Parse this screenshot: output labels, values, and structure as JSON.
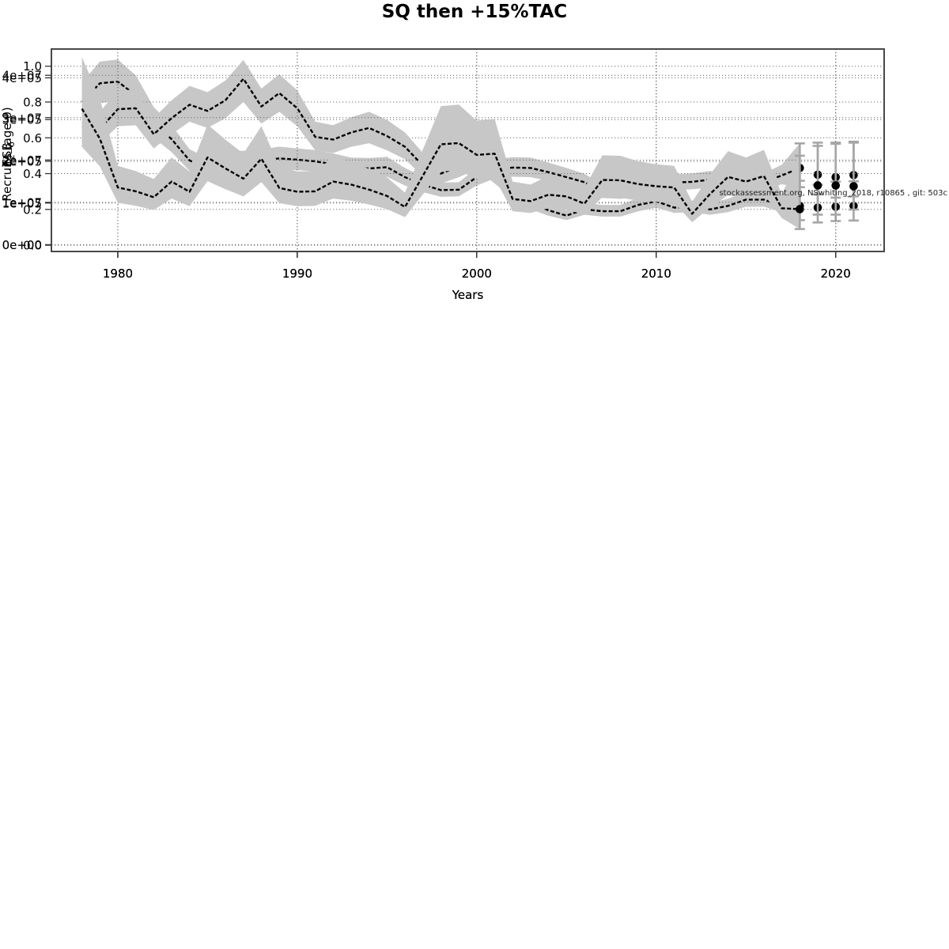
{
  "title": "SQ then +15%TAC",
  "watermark": "stockassessment.org, NSwhiting_2018, r10865 , git: 503c",
  "colors": {
    "band": "#c7c7c7",
    "line": "#000000",
    "errorbar": "#a6a6a6",
    "grid": "#6e6e6e",
    "box": "#3d3d3d",
    "dot": "#000000"
  },
  "chart_data": [
    {
      "type": "area",
      "name": "ssb",
      "title": "",
      "ylabel": "SSB",
      "ylabel_segments": [
        {
          "text": "SSB"
        }
      ],
      "xlabel": "Years",
      "xlim": [
        1976.3,
        2022.7
      ],
      "ylim": [
        -16000,
        469000
      ],
      "grid": true,
      "xticks": [
        {
          "v": 1980,
          "label": "1980"
        },
        {
          "v": 1990,
          "label": "1990"
        },
        {
          "v": 2000,
          "label": "2000"
        },
        {
          "v": 2010,
          "label": "2010"
        },
        {
          "v": 2020,
          "label": "2020"
        }
      ],
      "yticks": [
        {
          "v": 0,
          "label": "0e+00"
        },
        {
          "v": 100000,
          "label": "1e+05"
        },
        {
          "v": 200000,
          "label": "2e+05"
        },
        {
          "v": 300000,
          "label": "3e+05"
        },
        {
          "v": 400000,
          "label": "4e+05"
        }
      ],
      "years": [
        1978,
        1979,
        1980,
        1981,
        1982,
        1983,
        1984,
        1985,
        1986,
        1987,
        1988,
        1989,
        1990,
        1991,
        1992,
        1993,
        1994,
        1995,
        1996,
        1997,
        1998,
        1999,
        2000,
        2001,
        2002,
        2003,
        2004,
        2005,
        2006,
        2007,
        2008,
        2009,
        2010,
        2011,
        2012,
        2013,
        2014,
        2015,
        2016,
        2017,
        2018
      ],
      "values": [
        342000,
        387000,
        391000,
        358000,
        291000,
        253000,
        202000,
        183000,
        200000,
        198000,
        202000,
        207000,
        204000,
        200000,
        193000,
        184000,
        183000,
        186000,
        162000,
        144000,
        131000,
        132000,
        162000,
        181000,
        185000,
        184000,
        174000,
        162000,
        150000,
        128000,
        126000,
        133000,
        160000,
        149000,
        151000,
        156000,
        149000,
        143000,
        151000,
        166000,
        184000
      ],
      "lo": [
        300000,
        340000,
        344000,
        315000,
        256000,
        222000,
        177000,
        160000,
        175000,
        173000,
        177000,
        181000,
        179000,
        176000,
        170000,
        162000,
        161000,
        163000,
        142000,
        126000,
        115000,
        116000,
        142000,
        159000,
        163000,
        162000,
        153000,
        142000,
        132000,
        112000,
        110000,
        117000,
        141000,
        131000,
        133000,
        137000,
        131000,
        125000,
        132000,
        145000,
        138000
      ],
      "hi": [
        388000,
        439000,
        444000,
        406000,
        330000,
        287000,
        229000,
        208000,
        227000,
        225000,
        229000,
        235000,
        231000,
        227000,
        219000,
        209000,
        208000,
        211000,
        184000,
        163000,
        149000,
        150000,
        184000,
        205000,
        210000,
        209000,
        197000,
        184000,
        170000,
        145000,
        143000,
        151000,
        181000,
        169000,
        171000,
        177000,
        169000,
        162000,
        171000,
        192000,
        243000
      ],
      "forecast": {
        "years": [
          2018,
          2019,
          2020,
          2021
        ],
        "values": [
          184000,
          168000,
          162000,
          167000
        ],
        "lo": [
          138000,
          121000,
          113000,
          116000
        ],
        "hi": [
          243000,
          237000,
          242000,
          247000
        ]
      }
    },
    {
      "type": "area",
      "name": "fbar",
      "title": "",
      "ylabel": "F2−6",
      "ylabel_segments": [
        {
          "text": "F"
        },
        {
          "text": "2−6",
          "sub": true
        }
      ],
      "xlabel": "Years",
      "xlim": [
        1976.3,
        2022.7
      ],
      "ylim": [
        -0.035,
        1.096
      ],
      "grid": true,
      "xticks": [
        {
          "v": 1980,
          "label": "1980"
        },
        {
          "v": 1990,
          "label": "1990"
        },
        {
          "v": 2000,
          "label": "2000"
        },
        {
          "v": 2010,
          "label": "2010"
        },
        {
          "v": 2020,
          "label": "2020"
        }
      ],
      "yticks": [
        {
          "v": 0,
          "label": "0.0"
        },
        {
          "v": 0.2,
          "label": "0.2"
        },
        {
          "v": 0.4,
          "label": "0.4"
        },
        {
          "v": 0.6,
          "label": "0.6"
        },
        {
          "v": 0.8,
          "label": "0.8"
        },
        {
          "v": 1.0,
          "label": "1.0"
        }
      ],
      "years": [
        1978,
        1979,
        1980,
        1981,
        1982,
        1983,
        1984,
        1985,
        1986,
        1987,
        1988,
        1989,
        1990,
        1991,
        1992,
        1993,
        1994,
        1995,
        1996,
        1997,
        1998,
        1999,
        2000,
        2001,
        2002,
        2003,
        2004,
        2005,
        2006,
        2007,
        2008,
        2009,
        2010,
        2011,
        2012,
        2013,
        2014,
        2015,
        2016,
        2017,
        2018
      ],
      "values": [
        0.66,
        0.65,
        0.76,
        0.765,
        0.62,
        0.71,
        0.785,
        0.75,
        0.81,
        0.93,
        0.775,
        0.85,
        0.765,
        0.605,
        0.59,
        0.63,
        0.655,
        0.61,
        0.55,
        0.445,
        0.4,
        0.44,
        0.49,
        0.4,
        0.3,
        0.235,
        0.195,
        0.165,
        0.2,
        0.19,
        0.19,
        0.225,
        0.245,
        0.21,
        0.215,
        0.2,
        0.22,
        0.255,
        0.255,
        0.22,
        0.22
      ],
      "lo": [
        0.575,
        0.57,
        0.665,
        0.67,
        0.54,
        0.62,
        0.69,
        0.655,
        0.71,
        0.8,
        0.68,
        0.745,
        0.665,
        0.53,
        0.515,
        0.55,
        0.57,
        0.53,
        0.48,
        0.385,
        0.345,
        0.38,
        0.425,
        0.345,
        0.26,
        0.2,
        0.165,
        0.14,
        0.17,
        0.16,
        0.16,
        0.19,
        0.21,
        0.18,
        0.185,
        0.17,
        0.185,
        0.215,
        0.215,
        0.185,
        0.14
      ],
      "hi": [
        0.755,
        0.745,
        0.865,
        0.87,
        0.71,
        0.81,
        0.89,
        0.855,
        0.92,
        1.035,
        0.875,
        0.955,
        0.865,
        0.69,
        0.67,
        0.715,
        0.745,
        0.7,
        0.63,
        0.515,
        0.465,
        0.51,
        0.565,
        0.465,
        0.35,
        0.275,
        0.23,
        0.195,
        0.235,
        0.225,
        0.225,
        0.265,
        0.285,
        0.245,
        0.25,
        0.235,
        0.26,
        0.3,
        0.3,
        0.26,
        0.36
      ],
      "forecast": {
        "years": [
          2018,
          2019,
          2020,
          2021
        ],
        "values": [
          0.22,
          0.21,
          0.215,
          0.22
        ],
        "lo": [
          0.14,
          0.127,
          0.135,
          0.138
        ],
        "hi": [
          0.36,
          0.338,
          0.355,
          0.357
        ]
      }
    },
    {
      "type": "area",
      "name": "recruits",
      "title": "",
      "ylabel": "Recruits (age 0)",
      "ylabel_segments": [
        {
          "text": "Recruits (age 0)"
        }
      ],
      "xlabel": "Years",
      "xlim": [
        1976.3,
        2022.7
      ],
      "ylim": [
        -1600000,
        46200000
      ],
      "grid": true,
      "xticks": [
        {
          "v": 1980,
          "label": "1980"
        },
        {
          "v": 1990,
          "label": "1990"
        },
        {
          "v": 2000,
          "label": "2000"
        },
        {
          "v": 2010,
          "label": "2010"
        },
        {
          "v": 2020,
          "label": "2020"
        }
      ],
      "yticks": [
        {
          "v": 0,
          "label": "0e+00"
        },
        {
          "v": 10000000,
          "label": "1e+07"
        },
        {
          "v": 20000000,
          "label": "2e+07"
        },
        {
          "v": 30000000,
          "label": "3e+07"
        },
        {
          "v": 40000000,
          "label": "4e+07"
        }
      ],
      "years": [
        1978,
        1979,
        1980,
        1981,
        1982,
        1983,
        1984,
        1985,
        1986,
        1987,
        1988,
        1989,
        1990,
        1991,
        1992,
        1993,
        1994,
        1995,
        1996,
        1997,
        1998,
        1999,
        2000,
        2001,
        2002,
        2003,
        2004,
        2005,
        2006,
        2007,
        2008,
        2009,
        2010,
        2011,
        2012,
        2013,
        2014,
        2015,
        2016,
        2017,
        2018
      ],
      "values": [
        32100000,
        25000000,
        13500000,
        12600000,
        11200000,
        14900000,
        12500000,
        20600000,
        18000000,
        15600000,
        20300000,
        13400000,
        12500000,
        12600000,
        14900000,
        14200000,
        13000000,
        11500000,
        8900000,
        16300000,
        23700000,
        24000000,
        21200000,
        21500000,
        10800000,
        10300000,
        11800000,
        11400000,
        9700000,
        15300000,
        15200000,
        14300000,
        13800000,
        13500000,
        7300000,
        12000000,
        16000000,
        14900000,
        16200000,
        8600000,
        8400000
      ],
      "lo": [
        23100000,
        18500000,
        9900000,
        9200000,
        8200000,
        10900000,
        9100000,
        15000000,
        13100000,
        11400000,
        14800000,
        9800000,
        9100000,
        9200000,
        10900000,
        10400000,
        9500000,
        8400000,
        6500000,
        11900000,
        17300000,
        17500000,
        15500000,
        15700000,
        7900000,
        7500000,
        8600000,
        8300000,
        7100000,
        11200000,
        11100000,
        10400000,
        10100000,
        9900000,
        5300000,
        8800000,
        11700000,
        10900000,
        11800000,
        6300000,
        3700000
      ],
      "hi": [
        44300000,
        34500000,
        18600000,
        17400000,
        15500000,
        20600000,
        17300000,
        28400000,
        24800000,
        21500000,
        28000000,
        18500000,
        17300000,
        17400000,
        20600000,
        19600000,
        17900000,
        15900000,
        12300000,
        22500000,
        32700000,
        33100000,
        29300000,
        29700000,
        14900000,
        14200000,
        16300000,
        15700000,
        13400000,
        21100000,
        21000000,
        19700000,
        19000000,
        18600000,
        10100000,
        16600000,
        22100000,
        20600000,
        22400000,
        11900000,
        21000000
      ],
      "forecast": {
        "years": [
          2018,
          2019,
          2020,
          2021
        ],
        "values": [
          8400000,
          14000000,
          14000000,
          13800000
        ],
        "lo": [
          3700000,
          7100000,
          7100000,
          8300000
        ],
        "hi": [
          21000000,
          24100000,
          24100000,
          24100000
        ]
      }
    }
  ]
}
